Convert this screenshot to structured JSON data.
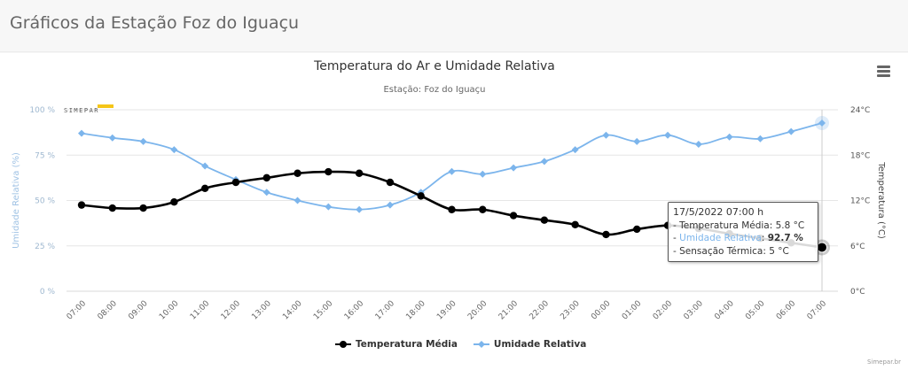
{
  "page": {
    "title": "Gráficos da Estação Foz do Iguaçu"
  },
  "chart_menu": {
    "icon": "hamburger-menu-icon"
  },
  "logo": {
    "text": "SIMEPAR"
  },
  "credits": "Simepar.br",
  "colors": {
    "temperature": "#000000",
    "humidity": "#7cb5ec",
    "grid": "#e6e6e6",
    "axis_label": "#7cb5ec"
  },
  "chart_data": {
    "type": "line",
    "title": "Temperatura do Ar e Umidade Relativa",
    "subtitle": "Estação: Foz do Iguaçu",
    "x": [
      "07:00",
      "08:00",
      "09:00",
      "10:00",
      "11:00",
      "12:00",
      "13:00",
      "14:00",
      "15:00",
      "16:00",
      "17:00",
      "18:00",
      "19:00",
      "20:00",
      "21:00",
      "22:00",
      "23:00",
      "00:00",
      "01:00",
      "02:00",
      "03:00",
      "04:00",
      "05:00",
      "06:00",
      "07:00"
    ],
    "y_left": {
      "label": "Umidade Relativa (%)",
      "min": 0,
      "max": 100,
      "ticks": [
        "0 %",
        "25 %",
        "50 %",
        "75 %",
        "100 %"
      ],
      "tick_values": [
        0,
        25,
        50,
        75,
        100
      ]
    },
    "y_right": {
      "label": "Temperatura (°C)",
      "min": 0,
      "max": 24,
      "ticks": [
        "0°C",
        "6°C",
        "12°C",
        "18°C",
        "24°C"
      ],
      "tick_values": [
        0,
        6,
        12,
        18,
        24
      ]
    },
    "grid": true,
    "legend_position": "bottom-center",
    "series": [
      {
        "name": "Temperatura Média",
        "axis": "right",
        "color": "#000000",
        "marker": "circle",
        "values": [
          11.4,
          11.0,
          11.0,
          11.8,
          13.6,
          14.4,
          15.0,
          15.6,
          15.8,
          15.6,
          14.4,
          12.6,
          10.8,
          10.8,
          10.0,
          9.4,
          8.8,
          7.5,
          8.2,
          8.7,
          8.3,
          7.6,
          7.0,
          6.4,
          5.8
        ]
      },
      {
        "name": "Umidade Relativa",
        "axis": "left",
        "color": "#7cb5ec",
        "marker": "diamond",
        "values": [
          87,
          84.5,
          82.5,
          78,
          69,
          61.5,
          54.5,
          50,
          46.5,
          45,
          47.5,
          54.5,
          66,
          64.5,
          68,
          71.5,
          78,
          86,
          82.5,
          86,
          81,
          85,
          84,
          88,
          92.7
        ]
      }
    ],
    "tooltip": {
      "date": "17/5/2022 07:00 h",
      "lines": [
        {
          "prefix": "- ",
          "name": "Temperatura Média",
          "sep": ": ",
          "value": "5.8 °C"
        },
        {
          "prefix": "- ",
          "name": "Umidade Relativa",
          "sep": ": ",
          "value": "92.7 %"
        },
        {
          "prefix": "- ",
          "name": "Sensação Térmica",
          "sep": ": ",
          "value": "5 °C"
        }
      ]
    }
  }
}
